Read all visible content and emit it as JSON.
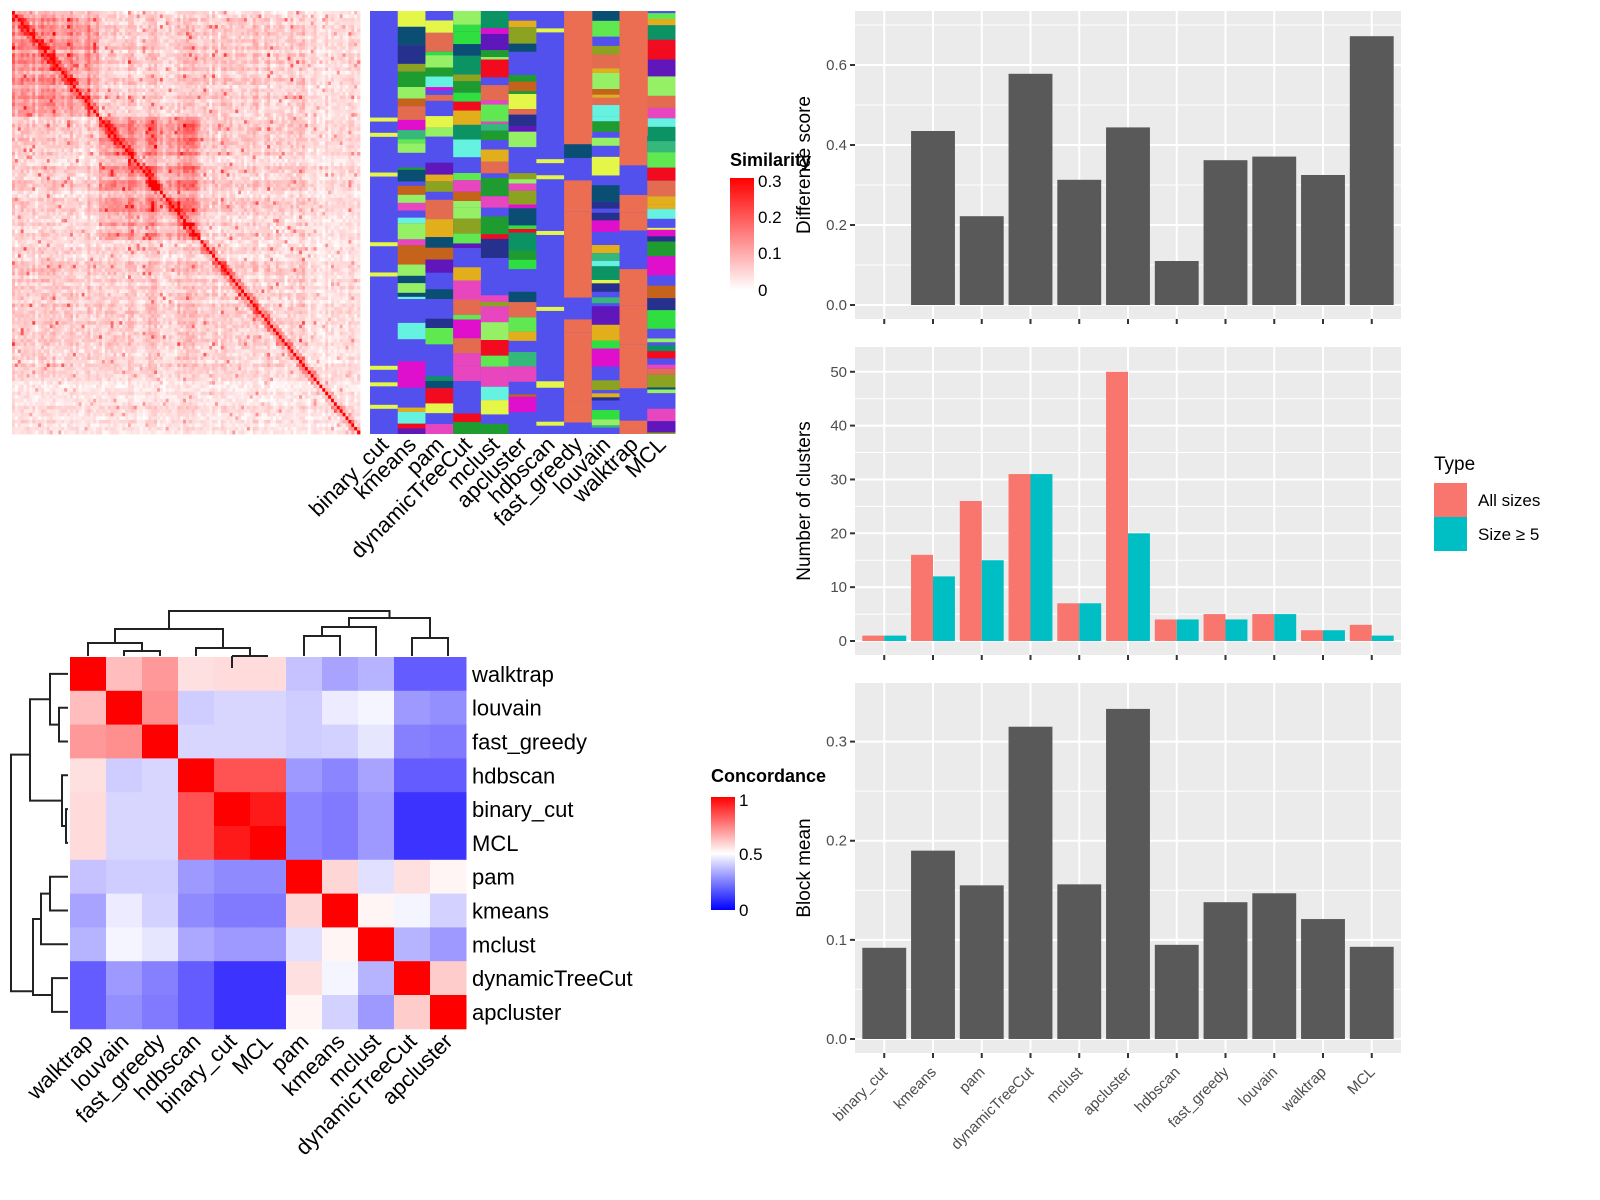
{
  "chart_data": [
    {
      "id": "similarity-heatmap",
      "type": "heatmap",
      "title": "",
      "legend": {
        "title": "Similarity",
        "ticks": [
          "0",
          "0.1",
          "0.2",
          "0.3"
        ],
        "range": [
          0,
          0.3
        ],
        "colors": [
          "#ffffff",
          "#ff0000"
        ]
      },
      "note": "Large consensus similarity matrix with diagonal block structure; followed by per-method cluster annotation columns",
      "annotation_columns": [
        "binary_cut",
        "kmeans",
        "pam",
        "dynamicTreeCut",
        "mclust",
        "apcluster",
        "hdbscan",
        "fast_greedy",
        "louvain",
        "walktrap",
        "MCL"
      ]
    },
    {
      "id": "concordance-heatmap",
      "type": "heatmap",
      "legend": {
        "title": "Concordance",
        "ticks": [
          "0",
          "0.5",
          "1"
        ],
        "range": [
          0,
          1
        ],
        "colors": [
          "#0000ff",
          "#ffffff",
          "#ff0000"
        ]
      },
      "rows": [
        "walktrap",
        "louvain",
        "fast_greedy",
        "hdbscan",
        "binary_cut",
        "MCL",
        "pam",
        "kmeans",
        "mclust",
        "dynamicTreeCut",
        "apcluster"
      ],
      "cols": [
        "walktrap",
        "louvain",
        "fast_greedy",
        "hdbscan",
        "binary_cut",
        "MCL",
        "pam",
        "kmeans",
        "mclust",
        "dynamicTreeCut",
        "apcluster"
      ],
      "values": [
        [
          1.0,
          0.63,
          0.7,
          0.56,
          0.57,
          0.57,
          0.38,
          0.32,
          0.35,
          0.18,
          0.18
        ],
        [
          0.63,
          1.0,
          0.72,
          0.4,
          0.42,
          0.42,
          0.4,
          0.46,
          0.48,
          0.3,
          0.28
        ],
        [
          0.7,
          0.72,
          1.0,
          0.42,
          0.42,
          0.42,
          0.4,
          0.41,
          0.45,
          0.25,
          0.24
        ],
        [
          0.56,
          0.4,
          0.42,
          1.0,
          0.84,
          0.84,
          0.3,
          0.26,
          0.32,
          0.18,
          0.18
        ],
        [
          0.57,
          0.42,
          0.42,
          0.84,
          1.0,
          0.95,
          0.26,
          0.24,
          0.3,
          0.1,
          0.1
        ],
        [
          0.57,
          0.42,
          0.42,
          0.84,
          0.95,
          1.0,
          0.26,
          0.24,
          0.3,
          0.1,
          0.1
        ],
        [
          0.38,
          0.4,
          0.4,
          0.3,
          0.27,
          0.27,
          1.0,
          0.58,
          0.44,
          0.56,
          0.52
        ],
        [
          0.32,
          0.46,
          0.41,
          0.27,
          0.24,
          0.24,
          0.58,
          1.0,
          0.52,
          0.48,
          0.41
        ],
        [
          0.35,
          0.48,
          0.45,
          0.33,
          0.3,
          0.3,
          0.44,
          0.52,
          1.0,
          0.35,
          0.3
        ],
        [
          0.18,
          0.3,
          0.25,
          0.18,
          0.1,
          0.1,
          0.56,
          0.48,
          0.35,
          1.0,
          0.6
        ],
        [
          0.18,
          0.28,
          0.24,
          0.18,
          0.1,
          0.1,
          0.52,
          0.41,
          0.3,
          0.6,
          1.0
        ]
      ]
    },
    {
      "id": "difference-score",
      "type": "bar",
      "categories": [
        "binary_cut",
        "kmeans",
        "pam",
        "dynamicTreeCut",
        "mclust",
        "apcluster",
        "hdbscan",
        "fast_greedy",
        "louvain",
        "walktrap",
        "MCL"
      ],
      "values": [
        0.0,
        0.435,
        0.222,
        0.578,
        0.313,
        0.444,
        0.11,
        0.362,
        0.371,
        0.325,
        0.672
      ],
      "ylabel": "Difference score",
      "xlabel": "",
      "ylim": [
        0,
        0.7
      ],
      "yticks": [
        "0.0",
        "0.2",
        "0.4",
        "0.6"
      ],
      "grid": true
    },
    {
      "id": "number-of-clusters",
      "type": "bar",
      "categories": [
        "binary_cut",
        "kmeans",
        "pam",
        "dynamicTreeCut",
        "mclust",
        "apcluster",
        "hdbscan",
        "fast_greedy",
        "louvain",
        "walktrap",
        "MCL"
      ],
      "series": [
        {
          "name": "All sizes",
          "color": "#F8766D",
          "values": [
            1,
            16,
            26,
            31,
            7,
            50,
            4,
            5,
            5,
            2,
            3
          ]
        },
        {
          "name": "Size ≥ 5",
          "color": "#00BFC4",
          "values": [
            1,
            12,
            15,
            31,
            7,
            20,
            4,
            4,
            5,
            2,
            1
          ]
        }
      ],
      "ylabel": "Number of clusters",
      "ylim": [
        0,
        52
      ],
      "yticks": [
        "0",
        "10",
        "20",
        "30",
        "40",
        "50"
      ],
      "legend": {
        "title": "Type",
        "position": "right"
      },
      "grid": true
    },
    {
      "id": "block-mean",
      "type": "bar",
      "categories": [
        "binary_cut",
        "kmeans",
        "pam",
        "dynamicTreeCut",
        "mclust",
        "apcluster",
        "hdbscan",
        "fast_greedy",
        "louvain",
        "walktrap",
        "MCL"
      ],
      "values": [
        0.092,
        0.19,
        0.155,
        0.315,
        0.156,
        0.333,
        0.095,
        0.138,
        0.147,
        0.121,
        0.093
      ],
      "ylabel": "Block mean",
      "ylim": [
        0,
        0.345
      ],
      "yticks": [
        "0.0",
        "0.1",
        "0.2",
        "0.3"
      ],
      "grid": true
    }
  ]
}
